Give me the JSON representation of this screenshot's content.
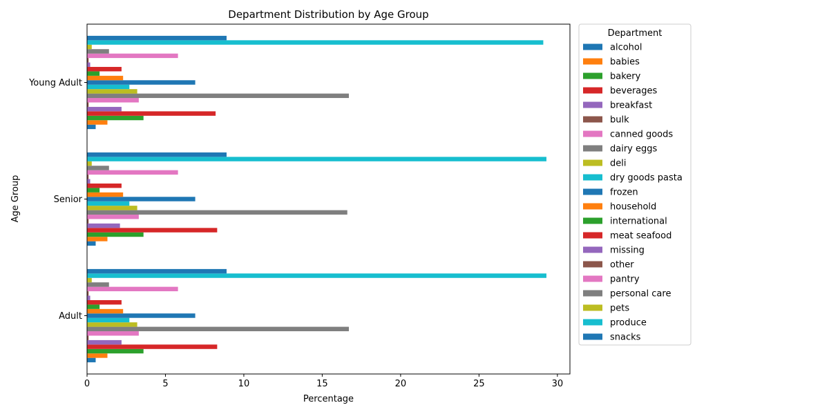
{
  "chart_data": {
    "type": "bar",
    "orientation": "horizontal",
    "title": "Department Distribution by Age Group",
    "xlabel": "Percentage",
    "ylabel": "Age Group",
    "xlim": [
      0,
      30.8
    ],
    "xticks": [
      0,
      5,
      10,
      15,
      20,
      25,
      30
    ],
    "grid": false,
    "legend": {
      "title": "Department",
      "placement": "outside-right"
    },
    "categories": [
      "Adult",
      "Senior",
      "Young Adult"
    ],
    "series": [
      {
        "name": "alcohol",
        "color": "#1f77b4",
        "values": [
          0.55,
          0.55,
          0.55
        ]
      },
      {
        "name": "babies",
        "color": "#ff7f0e",
        "values": [
          1.3,
          1.3,
          1.3
        ]
      },
      {
        "name": "bakery",
        "color": "#2ca02c",
        "values": [
          3.6,
          3.6,
          3.6
        ]
      },
      {
        "name": "beverages",
        "color": "#d62728",
        "values": [
          8.3,
          8.3,
          8.2
        ]
      },
      {
        "name": "breakfast",
        "color": "#9467bd",
        "values": [
          2.2,
          2.1,
          2.2
        ]
      },
      {
        "name": "bulk",
        "color": "#8c564b",
        "values": [
          0.1,
          0.1,
          0.1
        ]
      },
      {
        "name": "canned goods",
        "color": "#e377c2",
        "values": [
          3.3,
          3.3,
          3.3
        ]
      },
      {
        "name": "dairy eggs",
        "color": "#7f7f7f",
        "values": [
          16.7,
          16.6,
          16.7
        ]
      },
      {
        "name": "deli",
        "color": "#bcbd22",
        "values": [
          3.2,
          3.2,
          3.2
        ]
      },
      {
        "name": "dry goods pasta",
        "color": "#17becf",
        "values": [
          2.7,
          2.7,
          2.7
        ]
      },
      {
        "name": "frozen",
        "color": "#1f77b4",
        "values": [
          6.9,
          6.9,
          6.9
        ]
      },
      {
        "name": "household",
        "color": "#ff7f0e",
        "values": [
          2.3,
          2.3,
          2.3
        ]
      },
      {
        "name": "international",
        "color": "#2ca02c",
        "values": [
          0.8,
          0.8,
          0.8
        ]
      },
      {
        "name": "meat seafood",
        "color": "#d62728",
        "values": [
          2.2,
          2.2,
          2.2
        ]
      },
      {
        "name": "missing",
        "color": "#9467bd",
        "values": [
          0.2,
          0.2,
          0.2
        ]
      },
      {
        "name": "other",
        "color": "#8c564b",
        "values": [
          0.1,
          0.1,
          0.1
        ]
      },
      {
        "name": "pantry",
        "color": "#e377c2",
        "values": [
          5.8,
          5.8,
          5.8
        ]
      },
      {
        "name": "personal care",
        "color": "#7f7f7f",
        "values": [
          1.4,
          1.4,
          1.4
        ]
      },
      {
        "name": "pets",
        "color": "#bcbd22",
        "values": [
          0.3,
          0.3,
          0.3
        ]
      },
      {
        "name": "produce",
        "color": "#17becf",
        "values": [
          29.3,
          29.3,
          29.1
        ]
      },
      {
        "name": "snacks",
        "color": "#1f77b4",
        "values": [
          8.9,
          8.9,
          8.9
        ]
      }
    ]
  }
}
